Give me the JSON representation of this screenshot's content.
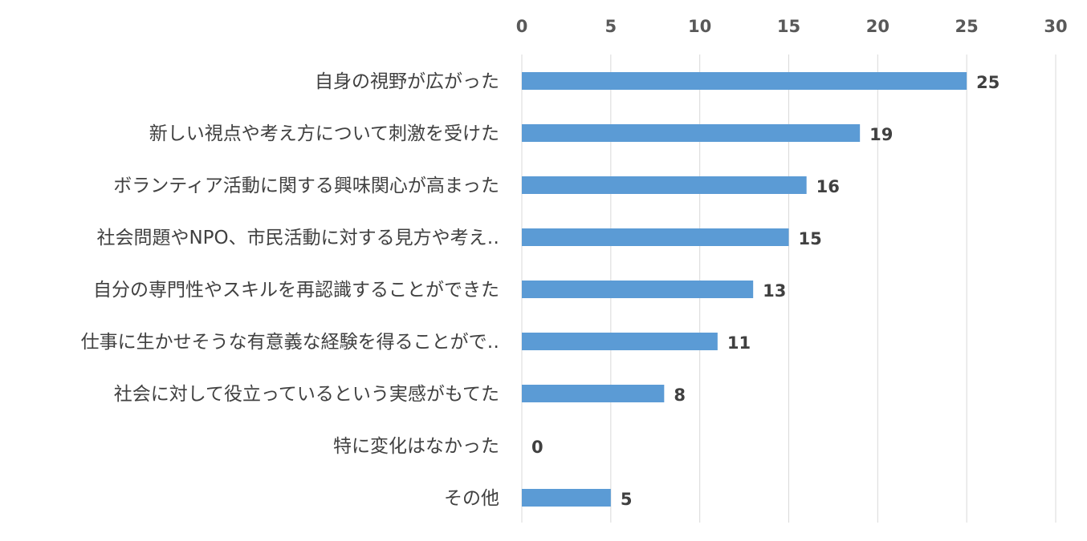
{
  "chart_data": {
    "type": "bar",
    "orientation": "horizontal",
    "categories": [
      "自身の視野が広がった",
      "新しい視点や考え方について刺激を受けた",
      "ボランティア活動に関する興味関心が高まった",
      "社会問題やNPO、市民活動に対する見方や考え‥",
      "自分の専門性やスキルを再認識することができた",
      "仕事に生かせそうな有意義な経験を得ることがで‥",
      "社会に対して役立っているという実感がもてた",
      "特に変化はなかった",
      "その他"
    ],
    "values": [
      25,
      19,
      16,
      15,
      13,
      11,
      8,
      0,
      5
    ],
    "xlim": [
      0,
      30
    ],
    "x_ticks": [
      0,
      5,
      10,
      15,
      20,
      25,
      30
    ],
    "x_axis_position": "top",
    "grid": true,
    "bar_color": "#5b9bd5",
    "data_labels": true,
    "title": "",
    "xlabel": "",
    "ylabel": ""
  }
}
